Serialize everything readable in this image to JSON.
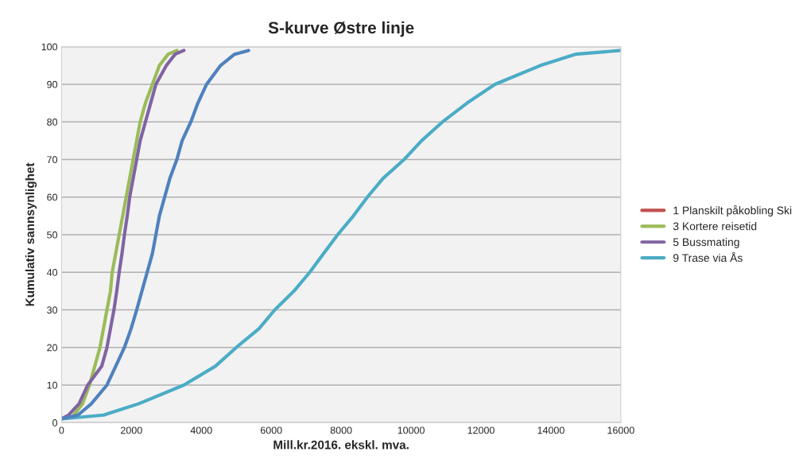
{
  "chart_data": {
    "type": "line",
    "title": "S-kurve Østre linje",
    "xlabel": "Mill.kr.2016. ekskl. mva.",
    "ylabel": "Kumulativ sannsynlighet",
    "xlim": [
      0,
      16000
    ],
    "ylim": [
      0,
      100
    ],
    "xticks": [
      0,
      2000,
      4000,
      6000,
      8000,
      10000,
      12000,
      14000,
      16000
    ],
    "yticks": [
      0,
      10,
      20,
      30,
      40,
      50,
      60,
      70,
      80,
      90,
      100
    ],
    "grid": "y",
    "legend": "right",
    "marker": "none",
    "line_style": "solid",
    "series": [
      {
        "name": "1 Planskilt påkobling Ski",
        "color": "#c0504d",
        "x": [
          null
        ],
        "values": [
          null
        ]
      },
      {
        "name": "3 Kortere reisetid",
        "color": "#9bbb59",
        "x": [
          350,
          600,
          800,
          950,
          1100,
          1200,
          1300,
          1400,
          1450,
          1550,
          1650,
          1750,
          1850,
          1950,
          2050,
          2150,
          2250,
          2400,
          2600,
          2800,
          3050,
          3300
        ],
        "values": [
          2,
          5,
          10,
          15,
          20,
          25,
          30,
          35,
          40,
          45,
          50,
          55,
          60,
          65,
          70,
          75,
          80,
          85,
          90,
          95,
          98,
          99
        ]
      },
      {
        "name": "5 Bussmating",
        "color": "#8064a2",
        "x": [
          0,
          200,
          500,
          750,
          1150,
          1300,
          1400,
          1500,
          1580,
          1650,
          1730,
          1800,
          1880,
          1950,
          2050,
          2150,
          2250,
          2400,
          2550,
          2700,
          3000,
          3250,
          3500
        ],
        "values": [
          1,
          2,
          5,
          10,
          15,
          20,
          25,
          30,
          35,
          40,
          45,
          50,
          55,
          60,
          65,
          70,
          75,
          80,
          85,
          90,
          95,
          98,
          99
        ]
      },
      {
        "name": "9 Trase via Ås",
        "color": "#4bacc6",
        "x": [
          0,
          1200,
          2200,
          3500,
          4400,
          5000,
          5650,
          6100,
          6650,
          7100,
          7500,
          7900,
          8350,
          8750,
          9200,
          9800,
          10300,
          10900,
          11600,
          12400,
          13700,
          14700,
          16000
        ],
        "values": [
          1,
          2,
          5,
          10,
          15,
          20,
          25,
          30,
          35,
          40,
          45,
          50,
          55,
          60,
          65,
          70,
          75,
          80,
          85,
          90,
          95,
          98,
          99
        ]
      },
      {
        "color": "#4f81bd",
        "x": [
          0,
          470,
          850,
          1300,
          1550,
          1800,
          1990,
          2150,
          2300,
          2450,
          2600,
          2700,
          2800,
          2950,
          3100,
          3300,
          3450,
          3700,
          3900,
          4150,
          4550,
          4950,
          5350
        ],
        "values": [
          1,
          2,
          5,
          10,
          15,
          20,
          25,
          30,
          35,
          40,
          45,
          50,
          55,
          60,
          65,
          70,
          75,
          80,
          85,
          90,
          95,
          98,
          99
        ]
      }
    ]
  }
}
